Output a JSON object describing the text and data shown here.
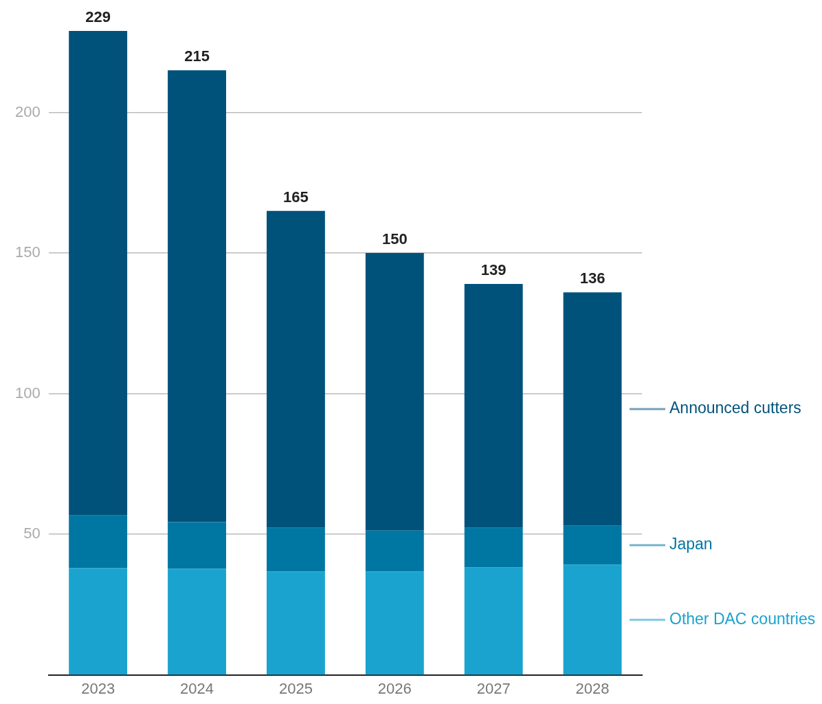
{
  "chart_data": {
    "type": "bar",
    "stacked": true,
    "categories": [
      "2023",
      "2024",
      "2025",
      "2026",
      "2027",
      "2028"
    ],
    "series": [
      {
        "name": "Other DAC countries",
        "color": "#1aa3cf",
        "values": [
          38,
          37.7,
          36.7,
          36.7,
          38.2,
          39.2
        ]
      },
      {
        "name": "Japan",
        "color": "#0077a3",
        "values": [
          18.7,
          16.6,
          15.6,
          14.6,
          14.1,
          13.8
        ]
      },
      {
        "name": "Announced cutters",
        "color": "#00527b",
        "values": [
          172.3,
          160.7,
          112.7,
          98.7,
          86.7,
          83
        ]
      }
    ],
    "totals": [
      "229",
      "215",
      "165",
      "150",
      "139",
      "136"
    ],
    "ylim": [
      0,
      229
    ],
    "yticks": [
      50,
      100,
      150,
      200
    ],
    "grid": "y",
    "legend": "right"
  }
}
